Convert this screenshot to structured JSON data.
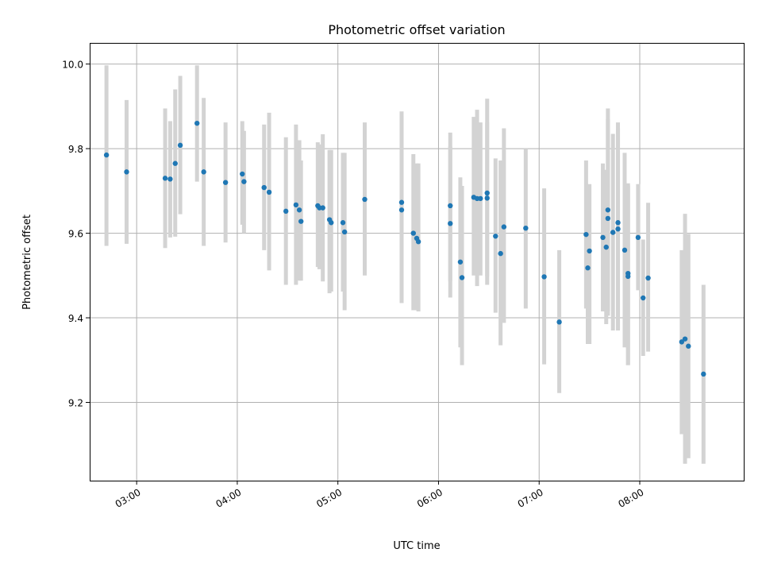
{
  "chart_data": {
    "type": "scatter",
    "title": "Photometric offset variation",
    "xlabel": "UTC time",
    "ylabel": "Photometric offset",
    "x_unit": "hours UTC",
    "xlim": [
      "02:32",
      "09:02"
    ],
    "ylim": [
      9.015,
      10.05
    ],
    "x_ticks": [
      "03:00",
      "04:00",
      "05:00",
      "06:00",
      "07:00",
      "08:00"
    ],
    "y_ticks": [
      9.2,
      9.4,
      9.6,
      9.8,
      10.0
    ],
    "y_tick_labels": [
      "9.2",
      "9.4",
      "9.6",
      "9.8",
      "10.0"
    ],
    "grid": true,
    "point_color": "#1f77b4",
    "errorbar_color": "#d3d3d3",
    "points": [
      {
        "x": "02:42",
        "y": 9.785,
        "ylow": 9.57,
        "yhigh": 9.997
      },
      {
        "x": "02:54",
        "y": 9.745,
        "ylow": 9.575,
        "yhigh": 9.915
      },
      {
        "x": "03:17",
        "y": 9.73,
        "ylow": 9.565,
        "yhigh": 9.895
      },
      {
        "x": "03:20",
        "y": 9.728,
        "ylow": 9.59,
        "yhigh": 9.865
      },
      {
        "x": "03:23",
        "y": 9.765,
        "ylow": 9.592,
        "yhigh": 9.94
      },
      {
        "x": "03:26",
        "y": 9.808,
        "ylow": 9.645,
        "yhigh": 9.972
      },
      {
        "x": "03:36",
        "y": 9.86,
        "ylow": 9.722,
        "yhigh": 9.997
      },
      {
        "x": "03:40",
        "y": 9.745,
        "ylow": 9.57,
        "yhigh": 9.92
      },
      {
        "x": "03:53",
        "y": 9.72,
        "ylow": 9.578,
        "yhigh": 9.862
      },
      {
        "x": "04:03",
        "y": 9.74,
        "ylow": 9.62,
        "yhigh": 9.865
      },
      {
        "x": "04:04",
        "y": 9.722,
        "ylow": 9.6,
        "yhigh": 9.842
      },
      {
        "x": "04:16",
        "y": 9.708,
        "ylow": 9.56,
        "yhigh": 9.857
      },
      {
        "x": "04:19",
        "y": 9.697,
        "ylow": 9.512,
        "yhigh": 9.885
      },
      {
        "x": "04:29",
        "y": 9.652,
        "ylow": 9.478,
        "yhigh": 9.827
      },
      {
        "x": "04:35",
        "y": 9.667,
        "ylow": 9.478,
        "yhigh": 9.857
      },
      {
        "x": "04:37",
        "y": 9.655,
        "ylow": 9.488,
        "yhigh": 9.82
      },
      {
        "x": "04:38",
        "y": 9.628,
        "ylow": 9.488,
        "yhigh": 9.772
      },
      {
        "x": "04:48",
        "y": 9.665,
        "ylow": 9.52,
        "yhigh": 9.815
      },
      {
        "x": "04:49",
        "y": 9.66,
        "ylow": 9.515,
        "yhigh": 9.81
      },
      {
        "x": "04:51",
        "y": 9.66,
        "ylow": 9.486,
        "yhigh": 9.834
      },
      {
        "x": "04:55",
        "y": 9.632,
        "ylow": 9.458,
        "yhigh": 9.797
      },
      {
        "x": "04:56",
        "y": 9.625,
        "ylow": 9.462,
        "yhigh": 9.797
      },
      {
        "x": "05:03",
        "y": 9.625,
        "ylow": 9.462,
        "yhigh": 9.79
      },
      {
        "x": "05:04",
        "y": 9.603,
        "ylow": 9.418,
        "yhigh": 9.79
      },
      {
        "x": "05:16",
        "y": 9.68,
        "ylow": 9.5,
        "yhigh": 9.862
      },
      {
        "x": "05:38",
        "y": 9.673,
        "ylow": 9.435,
        "yhigh": 9.888
      },
      {
        "x": "05:38",
        "y": 9.655,
        "ylow": 9.435,
        "yhigh": 9.877
      },
      {
        "x": "05:45",
        "y": 9.6,
        "ylow": 9.418,
        "yhigh": 9.787
      },
      {
        "x": "05:47",
        "y": 9.588,
        "ylow": 9.418,
        "yhigh": 9.765
      },
      {
        "x": "05:48",
        "y": 9.58,
        "ylow": 9.415,
        "yhigh": 9.765
      },
      {
        "x": "06:07",
        "y": 9.623,
        "ylow": 9.448,
        "yhigh": 9.805
      },
      {
        "x": "06:07",
        "y": 9.665,
        "ylow": 9.487,
        "yhigh": 9.838
      },
      {
        "x": "06:13",
        "y": 9.532,
        "ylow": 9.33,
        "yhigh": 9.732
      },
      {
        "x": "06:14",
        "y": 9.495,
        "ylow": 9.288,
        "yhigh": 9.712
      },
      {
        "x": "06:21",
        "y": 9.685,
        "ylow": 9.5,
        "yhigh": 9.875
      },
      {
        "x": "06:23",
        "y": 9.682,
        "ylow": 9.475,
        "yhigh": 9.892
      },
      {
        "x": "06:25",
        "y": 9.682,
        "ylow": 9.5,
        "yhigh": 9.862
      },
      {
        "x": "06:29",
        "y": 9.695,
        "ylow": 9.478,
        "yhigh": 9.918
      },
      {
        "x": "06:29",
        "y": 9.683,
        "ylow": 9.498,
        "yhigh": 9.862
      },
      {
        "x": "06:34",
        "y": 9.593,
        "ylow": 9.412,
        "yhigh": 9.777
      },
      {
        "x": "06:37",
        "y": 9.552,
        "ylow": 9.335,
        "yhigh": 9.772
      },
      {
        "x": "06:39",
        "y": 9.615,
        "ylow": 9.388,
        "yhigh": 9.848
      },
      {
        "x": "06:52",
        "y": 9.612,
        "ylow": 9.422,
        "yhigh": 9.8
      },
      {
        "x": "07:03",
        "y": 9.497,
        "ylow": 9.29,
        "yhigh": 9.706
      },
      {
        "x": "07:12",
        "y": 9.39,
        "ylow": 9.222,
        "yhigh": 9.56
      },
      {
        "x": "07:28",
        "y": 9.597,
        "ylow": 9.422,
        "yhigh": 9.772
      },
      {
        "x": "07:29",
        "y": 9.518,
        "ylow": 9.338,
        "yhigh": 9.695
      },
      {
        "x": "07:30",
        "y": 9.558,
        "ylow": 9.338,
        "yhigh": 9.716
      },
      {
        "x": "07:38",
        "y": 9.59,
        "ylow": 9.415,
        "yhigh": 9.765
      },
      {
        "x": "07:40",
        "y": 9.567,
        "ylow": 9.385,
        "yhigh": 9.75
      },
      {
        "x": "07:41",
        "y": 9.635,
        "ylow": 9.405,
        "yhigh": 9.895
      },
      {
        "x": "07:41",
        "y": 9.655,
        "ylow": 9.415,
        "yhigh": 9.87
      },
      {
        "x": "07:44",
        "y": 9.602,
        "ylow": 9.37,
        "yhigh": 9.835
      },
      {
        "x": "07:47",
        "y": 9.625,
        "ylow": 9.37,
        "yhigh": 9.862
      },
      {
        "x": "07:47",
        "y": 9.61,
        "ylow": 9.372,
        "yhigh": 9.848
      },
      {
        "x": "07:51",
        "y": 9.56,
        "ylow": 9.33,
        "yhigh": 9.79
      },
      {
        "x": "07:53",
        "y": 9.505,
        "ylow": 9.288,
        "yhigh": 9.718
      },
      {
        "x": "07:53",
        "y": 9.498,
        "ylow": 9.288,
        "yhigh": 9.713
      },
      {
        "x": "07:59",
        "y": 9.59,
        "ylow": 9.465,
        "yhigh": 9.716
      },
      {
        "x": "08:02",
        "y": 9.447,
        "ylow": 9.31,
        "yhigh": 9.585
      },
      {
        "x": "08:05",
        "y": 9.494,
        "ylow": 9.32,
        "yhigh": 9.672
      },
      {
        "x": "08:25",
        "y": 9.343,
        "ylow": 9.125,
        "yhigh": 9.56
      },
      {
        "x": "08:27",
        "y": 9.35,
        "ylow": 9.055,
        "yhigh": 9.646
      },
      {
        "x": "08:29",
        "y": 9.333,
        "ylow": 9.068,
        "yhigh": 9.598
      },
      {
        "x": "08:38",
        "y": 9.267,
        "ylow": 9.055,
        "yhigh": 9.478
      }
    ]
  }
}
